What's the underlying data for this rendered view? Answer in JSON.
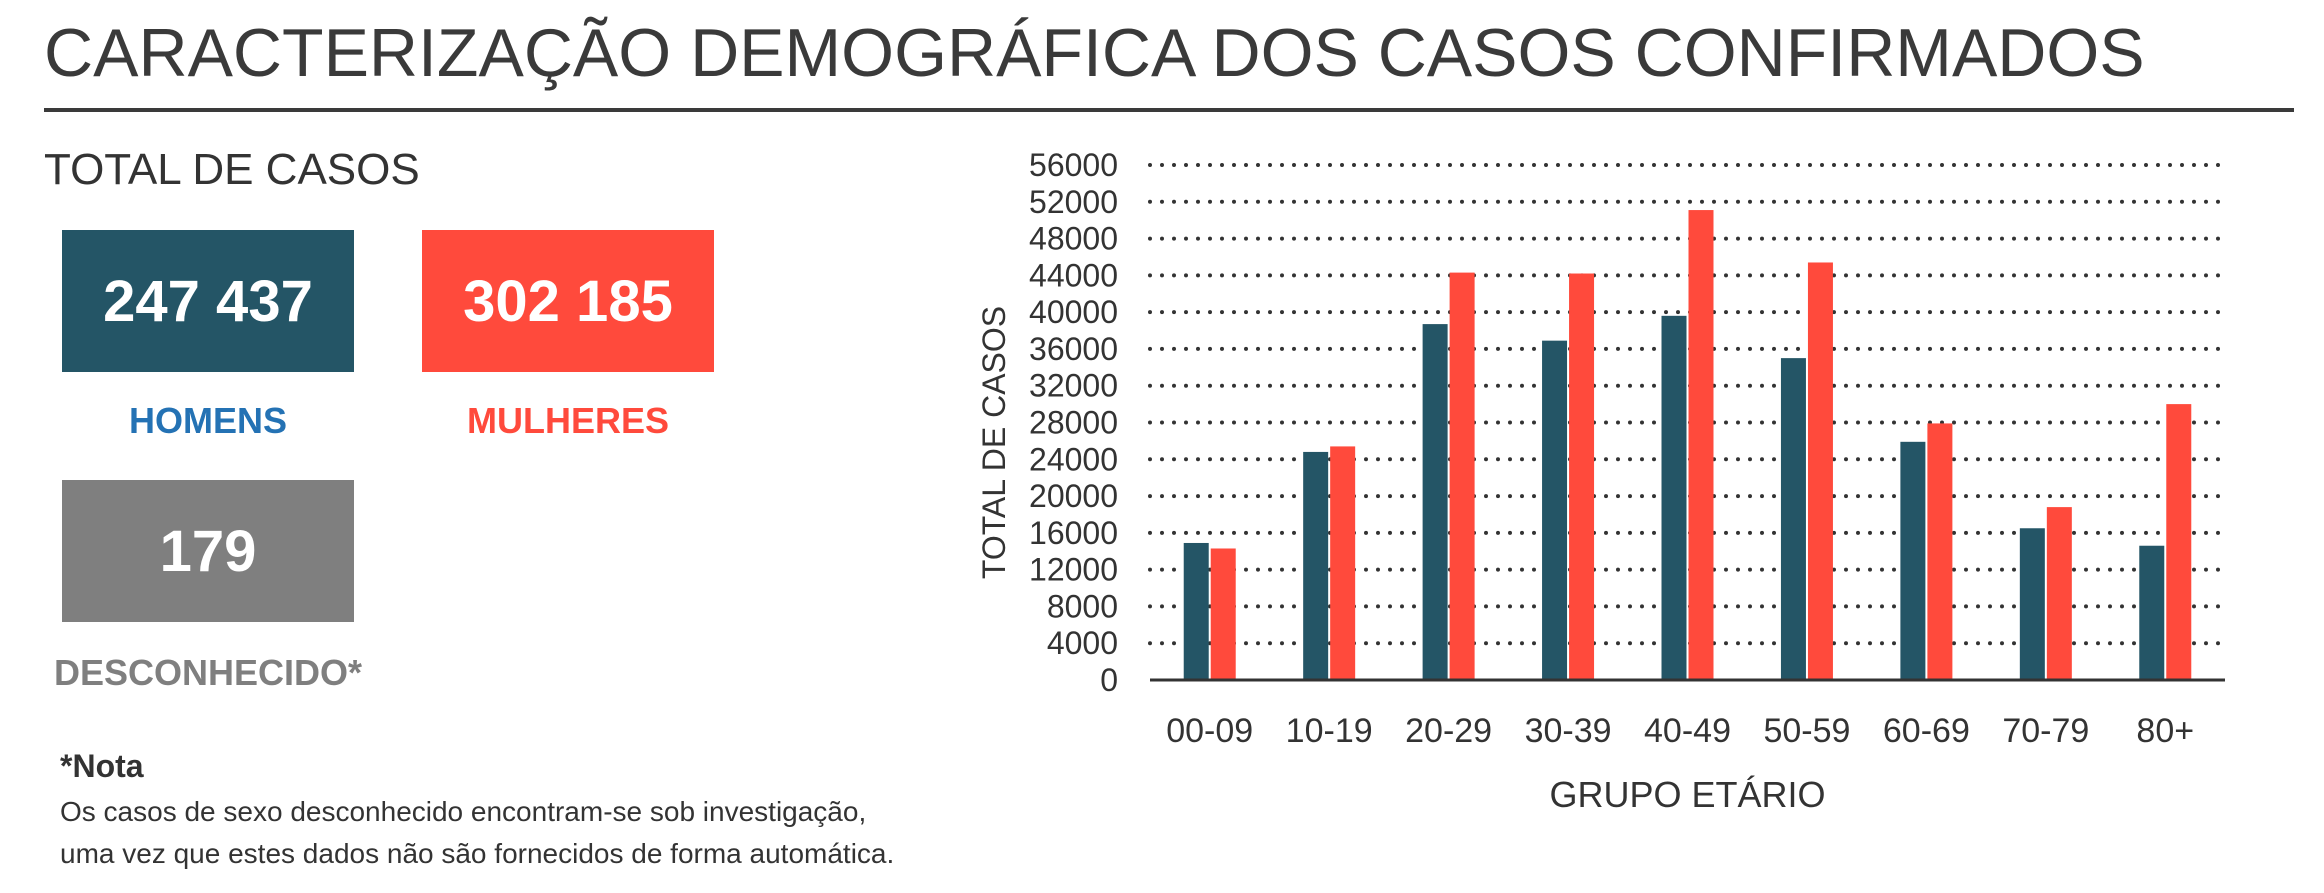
{
  "page": {
    "title": "CARACTERIZAÇÃO DEMOGRÁFICA DOS CASOS CONFIRMADOS",
    "section_title": "TOTAL DE CASOS"
  },
  "stats": {
    "homens": {
      "value": "247 437",
      "label": "HOMENS",
      "color": "#245566",
      "label_color": "#2472b4"
    },
    "mulheres": {
      "value": "302 185",
      "label": "MULHERES",
      "color": "#ff4a3c",
      "label_color": "#ff4a3c"
    },
    "desconhecido": {
      "value": "179",
      "label": "DESCONHECIDO*",
      "color": "#7f7f7f",
      "label_color": "#7f7f7f"
    }
  },
  "note": {
    "title": "*Nota",
    "line1": "Os casos de sexo desconhecido encontram-se sob investigação,",
    "line2": "uma vez que estes dados não são fornecidos de forma automática."
  },
  "chart_data": {
    "type": "bar",
    "categories": [
      "00-09",
      "10-19",
      "20-29",
      "30-39",
      "40-49",
      "50-59",
      "60-69",
      "70-79",
      "80+"
    ],
    "series": [
      {
        "name": "",
        "color": "#245566",
        "values": [
          14900,
          24800,
          38700,
          36900,
          39600,
          35000,
          25900,
          16500,
          14600
        ]
      },
      {
        "name": "",
        "color": "#ff4a3c",
        "values": [
          14300,
          25400,
          44300,
          44200,
          51100,
          45400,
          27900,
          18800,
          30000
        ]
      }
    ],
    "title": "",
    "xlabel": "GRUPO ETÁRIO",
    "ylabel": "TOTAL DE CASOS",
    "ylim": [
      0,
      56000
    ],
    "yticks": [
      "0",
      "4000",
      "8000",
      "12000",
      "16000",
      "20000",
      "24000",
      "28000",
      "32000",
      "36000",
      "40000",
      "44000",
      "48000",
      "52000",
      "56000"
    ],
    "grid": "horizontal-dotted",
    "legend": "none"
  }
}
